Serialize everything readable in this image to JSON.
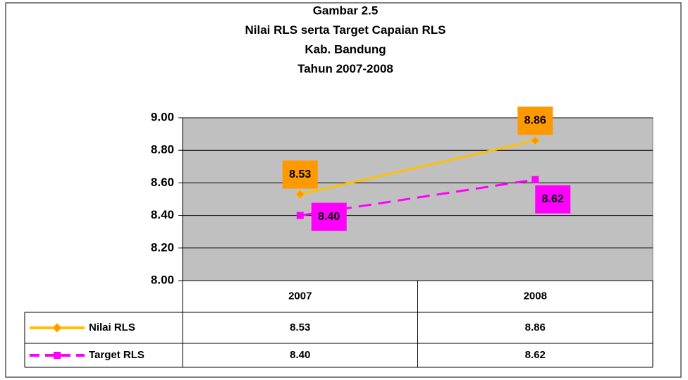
{
  "chart_data": {
    "type": "line",
    "title": [
      "Gambar 2.5",
      "Nilai RLS serta Target Capaian RLS",
      "Kab. Bandung",
      "Tahun 2007-2008"
    ],
    "categories": [
      "2007",
      "2008"
    ],
    "series": [
      {
        "name": "Nilai RLS",
        "color": "#ffc000",
        "marker": "diamond",
        "marker_color": "#ff9900",
        "label_box": "#ff9900",
        "dashed": false,
        "values": [
          8.53,
          8.86
        ]
      },
      {
        "name": "Target RLS",
        "color": "#ff00ff",
        "marker": "square",
        "marker_color": "#ff00ff",
        "label_box": "#ff00ff",
        "dashed": true,
        "values": [
          8.4,
          8.62
        ],
        "value_labels": [
          "8.40",
          "8.62"
        ]
      }
    ],
    "ylim": [
      8,
      9
    ],
    "yticks": [
      {
        "value": 8,
        "label": "8.00"
      },
      {
        "value": 8.2,
        "label": "8.20"
      },
      {
        "value": 8.4,
        "label": "8.40"
      },
      {
        "value": 8.6,
        "label": "8.60"
      },
      {
        "value": 8.8,
        "label": "8.80"
      },
      {
        "value": 9,
        "label": "9.00"
      }
    ],
    "grid": true,
    "plot_background": "#c0c0c0"
  }
}
